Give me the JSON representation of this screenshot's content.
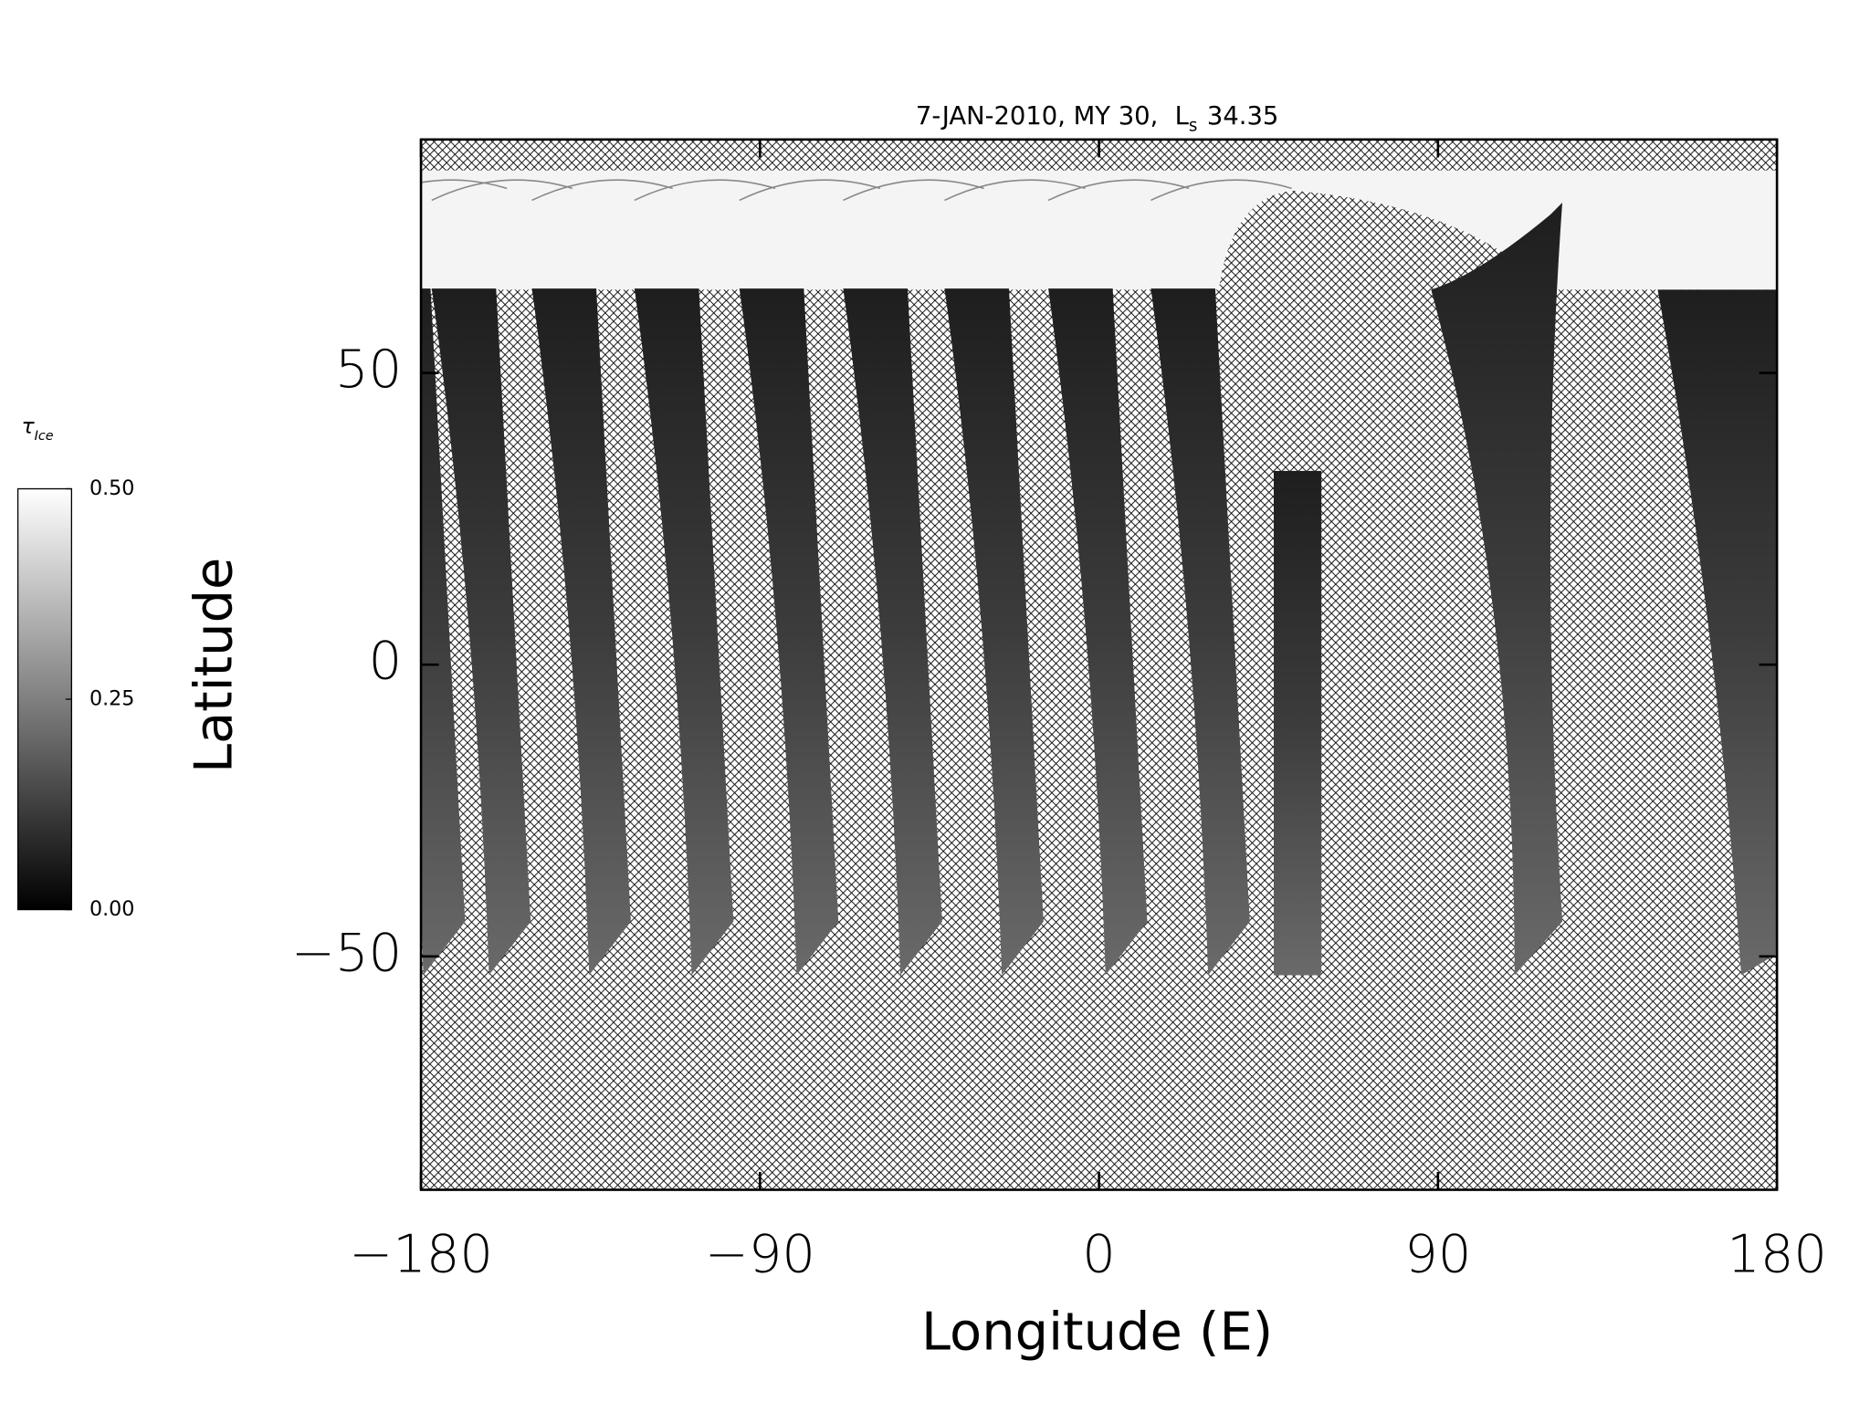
{
  "chart_data": {
    "type": "map",
    "title": {
      "text": "7-JAN-2010, MY 30,",
      "symbol": "L",
      "subscript": "s",
      "value": 34.35
    },
    "xlabel": "Longitude (E)",
    "ylabel": "Latitude",
    "xlim": [
      -180,
      180
    ],
    "xticks": [
      {
        "value": -180,
        "label": "−180"
      },
      {
        "value": -90,
        "label": "−90"
      },
      0,
      90,
      180
    ],
    "ylim": [
      -90,
      90
    ],
    "yticks": [
      {
        "value": -50,
        "label": "−50"
      },
      0,
      50
    ],
    "colorbar": {
      "label": "τ",
      "label_subscript": "Ice",
      "lim": [
        0,
        0.5
      ],
      "ticks": [
        {
          "value": 0,
          "label": "0.00"
        },
        {
          "value": 0.25,
          "label": "0.25"
        },
        {
          "value": 0.5,
          "label": "0.50"
        }
      ]
    }
  }
}
